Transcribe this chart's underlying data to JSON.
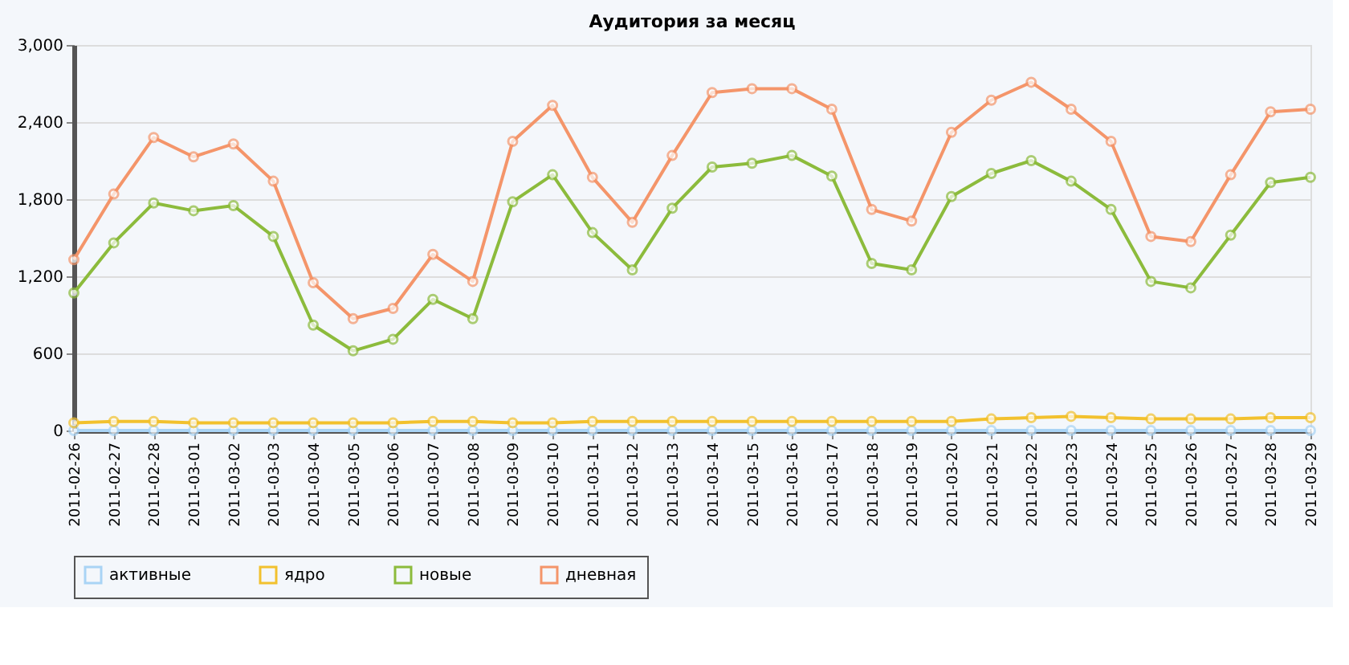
{
  "chart_data": {
    "type": "line",
    "title": "Аудитория за месяц",
    "categories": [
      "2011-02-26",
      "2011-02-27",
      "2011-02-28",
      "2011-03-01",
      "2011-03-02",
      "2011-03-03",
      "2011-03-04",
      "2011-03-05",
      "2011-03-06",
      "2011-03-07",
      "2011-03-08",
      "2011-03-09",
      "2011-03-10",
      "2011-03-11",
      "2011-03-12",
      "2011-03-13",
      "2011-03-14",
      "2011-03-15",
      "2011-03-16",
      "2011-03-17",
      "2011-03-18",
      "2011-03-19",
      "2011-03-20",
      "2011-03-21",
      "2011-03-22",
      "2011-03-23",
      "2011-03-24",
      "2011-03-25",
      "2011-03-26",
      "2011-03-27",
      "2011-03-28",
      "2011-03-29"
    ],
    "series": [
      {
        "name": "активные",
        "color": "#a9d4f5",
        "values": [
          0,
          0,
          0,
          0,
          0,
          0,
          0,
          0,
          0,
          0,
          0,
          0,
          0,
          0,
          0,
          0,
          0,
          0,
          0,
          0,
          0,
          0,
          0,
          0,
          0,
          0,
          0,
          0,
          0,
          0,
          0,
          0
        ]
      },
      {
        "name": "ядро",
        "color": "#f2c12e",
        "values": [
          60,
          70,
          70,
          60,
          60,
          60,
          60,
          60,
          60,
          70,
          70,
          60,
          60,
          70,
          70,
          70,
          70,
          70,
          70,
          70,
          70,
          70,
          70,
          90,
          100,
          110,
          100,
          90,
          90,
          90,
          100,
          100
        ]
      },
      {
        "name": "новые",
        "color": "#8cbb3c",
        "values": [
          1070,
          1460,
          1770,
          1710,
          1750,
          1510,
          820,
          620,
          710,
          1020,
          870,
          1780,
          1990,
          1540,
          1250,
          1730,
          2050,
          2080,
          2140,
          1980,
          1300,
          1250,
          1820,
          2000,
          2100,
          1940,
          1720,
          1160,
          1110,
          1520,
          1930,
          1970
        ]
      },
      {
        "name": "дневная",
        "color": "#f4956a",
        "values": [
          1330,
          1840,
          2280,
          2130,
          2230,
          1940,
          1150,
          870,
          950,
          1370,
          1160,
          2250,
          2530,
          1970,
          1620,
          2140,
          2630,
          2660,
          2660,
          2500,
          1720,
          1630,
          2320,
          2570,
          2710,
          2500,
          2250,
          1510,
          1470,
          1990,
          2480,
          2500
        ]
      }
    ],
    "ylim": [
      0,
      3000
    ],
    "yticks": [
      {
        "value": 0,
        "label": "0"
      },
      {
        "value": 600,
        "label": "600"
      },
      {
        "value": 1200,
        "label": "1,200"
      },
      {
        "value": 1800,
        "label": "1,800"
      },
      {
        "value": 2400,
        "label": "2,400"
      },
      {
        "value": 3000,
        "label": "3,000"
      }
    ],
    "grid": "y",
    "legend": "bottom",
    "marker": "circle",
    "line_style": "solid"
  }
}
